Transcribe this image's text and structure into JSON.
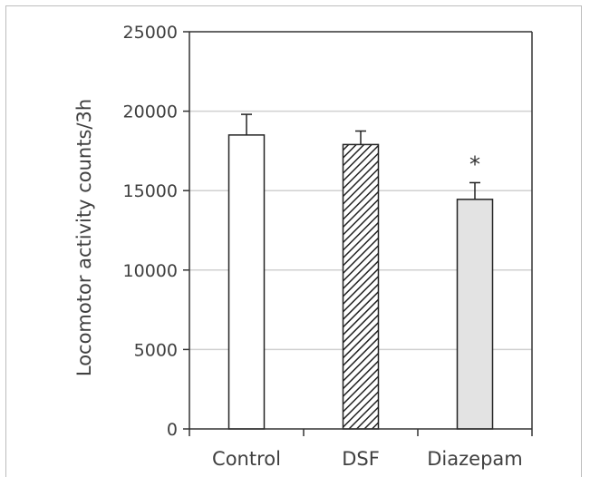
{
  "chart_data": {
    "type": "bar",
    "title": "",
    "xlabel": "",
    "ylabel": "Locomotor activity counts/3h",
    "ylim": [
      0,
      25000
    ],
    "yticks": [
      0,
      5000,
      10000,
      15000,
      20000,
      25000
    ],
    "grid": true,
    "categories": [
      "Control",
      "DSF",
      "Diazepam"
    ],
    "series": [
      {
        "values": [
          18500,
          17900,
          14450
        ],
        "error": [
          1300,
          850,
          1050
        ],
        "fills": [
          "#ffffff",
          "hatch",
          "#e3e3e3"
        ]
      }
    ],
    "annotations": [
      {
        "category": "Diazepam",
        "text": "*"
      }
    ]
  }
}
